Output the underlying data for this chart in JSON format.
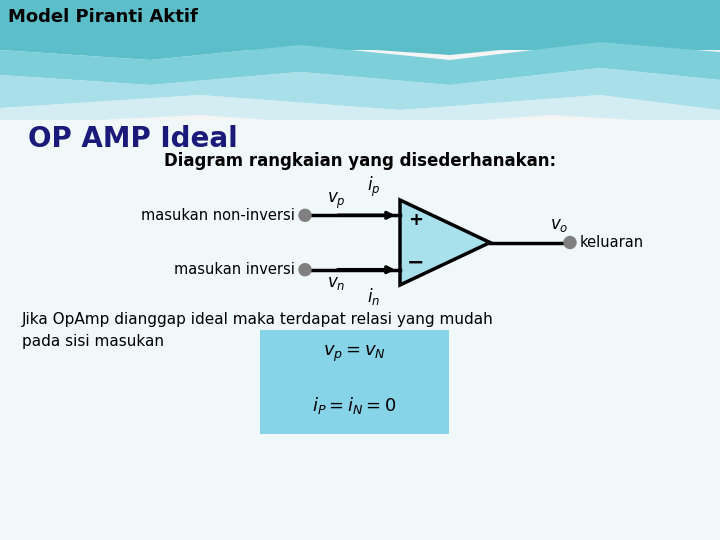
{
  "title_main": "Model Piranti Aktif",
  "title_sub": "OP AMP Ideal",
  "subtitle": "Diagram rangkaian yang disederhanakan:",
  "label_non_inv": "masukan non-inversi",
  "label_inv": "masukan inversi",
  "label_output": "keluaran",
  "label_vp": "$v_p$",
  "label_vn": "$v_n$",
  "label_ip": "$i_p$",
  "label_in": "$i_n$",
  "label_vo": "$v_o$",
  "label_plus": "+",
  "label_minus": "−",
  "formula1": "$v_p = v_N$",
  "formula2": "$i_P = i_N = 0$",
  "text_body": "Jika OpAmp dianggap ideal maka terdapat relasi yang mudah\npada sisi masukan",
  "bg_white": "#f5f5f5",
  "bg_teal_dark": "#5bbec8",
  "bg_teal_mid": "#7dcfda",
  "bg_teal_light": "#a8dfe8",
  "opamp_fill": "#a8e0ec",
  "formula_box_color": "#87d4e8",
  "dot_color": "#808080",
  "title_main_color": "#000000",
  "title_sub_color": "#1a1a7a",
  "text_color": "#000000"
}
